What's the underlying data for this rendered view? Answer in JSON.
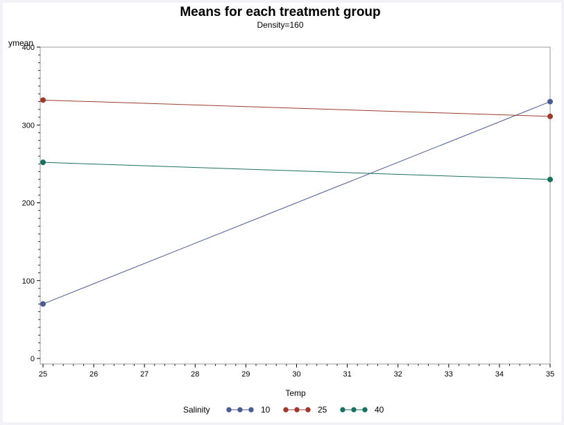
{
  "chart_data": {
    "type": "line",
    "title": "Means for each treatment group",
    "subtitle": "Density=160",
    "xlabel": "Temp",
    "ylabel": "ymean",
    "x": [
      25,
      35
    ],
    "xlim": [
      25,
      35
    ],
    "ylim": [
      0,
      400
    ],
    "xticks": [
      "25",
      "26",
      "27",
      "28",
      "29",
      "30",
      "31",
      "32",
      "33",
      "34",
      "35"
    ],
    "yticks": [
      "0",
      "100",
      "200",
      "300",
      "400"
    ],
    "grid": false,
    "legend": {
      "title": "Salinity",
      "placement": "bottom"
    },
    "series": [
      {
        "name": "10",
        "values": [
          70,
          330
        ],
        "color": "#4a5a92"
      },
      {
        "name": "25",
        "values": [
          332,
          311
        ],
        "color": "#9c3a2c"
      },
      {
        "name": "40",
        "values": [
          252,
          230
        ],
        "color": "#1a6f5e"
      }
    ]
  }
}
